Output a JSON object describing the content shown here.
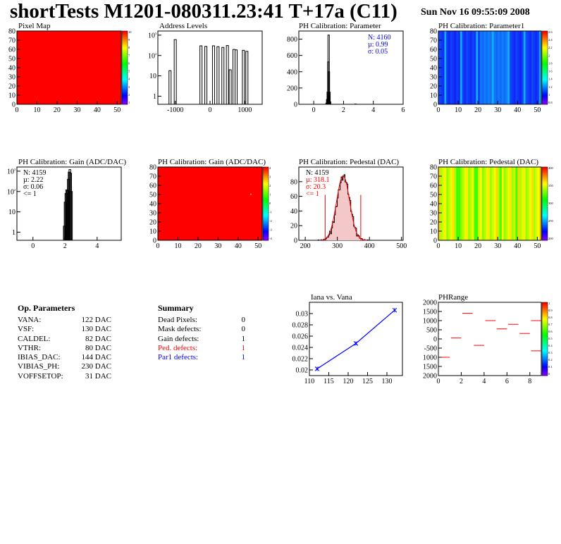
{
  "header": {
    "title": "shortTests M1201-080311.23:41 T+17a (C11)",
    "date": "Sun Nov 16 09:55:09 2008"
  },
  "colors": {
    "red": "#ff0000",
    "blue": "#0000ff",
    "black": "#000000",
    "fill": "#f4c8c8"
  },
  "chart_data": [
    {
      "id": "pixel-map",
      "type": "heatmap",
      "title": "Pixel Map",
      "xlim": [
        0,
        52
      ],
      "ylim": [
        0,
        80
      ],
      "xticks": [
        "0",
        "10",
        "20",
        "30",
        "40",
        "50"
      ],
      "yticks": [
        "0",
        "10",
        "20",
        "30",
        "40",
        "50",
        "60",
        "70",
        "80"
      ],
      "zticks": [
        "10",
        "9",
        "8",
        "7",
        "6",
        "5",
        "4",
        "3",
        "2",
        "1"
      ],
      "fill_value": 10
    },
    {
      "id": "address-levels",
      "type": "bar",
      "title": "Address Levels",
      "log_y": true,
      "xlim": [
        -1500,
        1500
      ],
      "xticks": [
        "-1000",
        "0",
        "1000"
      ],
      "yticks": [
        "1",
        "10",
        "10^2",
        "10^3"
      ],
      "peaks": [
        {
          "x": -1150,
          "y": 18
        },
        {
          "x": -1000,
          "y": 600
        },
        {
          "x": -260,
          "y": 300
        },
        {
          "x": -120,
          "y": 280
        },
        {
          "x": 100,
          "y": 300
        },
        {
          "x": 230,
          "y": 270
        },
        {
          "x": 370,
          "y": 250
        },
        {
          "x": 500,
          "y": 310
        },
        {
          "x": 580,
          "y": 20
        },
        {
          "x": 690,
          "y": 200
        },
        {
          "x": 750,
          "y": 190
        },
        {
          "x": 960,
          "y": 180
        },
        {
          "x": 1060,
          "y": 160
        }
      ]
    },
    {
      "id": "ph-cal-parameter",
      "type": "bar",
      "title": "PH Calibration: Parameter",
      "xlim": [
        -1,
        6
      ],
      "ylim": [
        0,
        900
      ],
      "xticks": [
        "0",
        "2",
        "4",
        "6"
      ],
      "yticks": [
        "0",
        "200",
        "400",
        "600",
        "800"
      ],
      "stats": [
        "N: 4160",
        "µ: 0.99",
        "σ: 0.05"
      ],
      "values": [
        [
          0.86,
          15
        ],
        [
          0.9,
          60
        ],
        [
          0.94,
          150
        ],
        [
          0.98,
          520
        ],
        [
          1.0,
          850
        ],
        [
          1.02,
          400
        ],
        [
          1.06,
          150
        ],
        [
          1.1,
          30
        ],
        [
          2.8,
          3
        ]
      ]
    },
    {
      "id": "ph-cal-parameter1",
      "type": "heatmap",
      "title": "PH Calibration: Parameter1",
      "xlim": [
        0,
        52
      ],
      "ylim": [
        0,
        80
      ],
      "xticks": [
        "0",
        "10",
        "20",
        "30",
        "40",
        "50"
      ],
      "yticks": [
        "0",
        "10",
        "20",
        "30",
        "40",
        "50",
        "60",
        "70",
        "80"
      ],
      "zticks": [
        "2.6",
        "2.4",
        "2.2",
        "2",
        "1.8",
        "1.6",
        "1.4",
        "1.2",
        "1",
        "0.8"
      ],
      "fill_value": 1.0
    },
    {
      "id": "gain-hist",
      "type": "bar",
      "title": "PH Calibration: Gain (ADC/DAC)",
      "log_y": true,
      "xlim": [
        -1,
        5.5
      ],
      "xticks": [
        "0",
        "2",
        "4"
      ],
      "yticks": [
        "1",
        "10",
        "10^2",
        "10^3"
      ],
      "stats": [
        "N: 4159",
        "µ: 2.22",
        "σ: 0.06",
        "<= 1"
      ],
      "values": [
        [
          1.95,
          2
        ],
        [
          2.0,
          30
        ],
        [
          2.05,
          80
        ],
        [
          2.1,
          120
        ],
        [
          2.15,
          110
        ],
        [
          2.2,
          400
        ],
        [
          2.25,
          900
        ],
        [
          2.3,
          1200
        ],
        [
          2.35,
          800
        ],
        [
          2.4,
          100
        ]
      ]
    },
    {
      "id": "gain-map",
      "type": "heatmap",
      "title": "PH Calibration: Gain (ADC/DAC)",
      "xlim": [
        0,
        52
      ],
      "ylim": [
        0,
        80
      ],
      "xticks": [
        "0",
        "10",
        "20",
        "30",
        "40",
        "50"
      ],
      "yticks": [
        "0",
        "10",
        "20",
        "30",
        "40",
        "50",
        "60",
        "70",
        "80"
      ],
      "zticks": [
        "4",
        "3",
        "2",
        "1",
        "0",
        "-1",
        "-2",
        "-3",
        "-4"
      ],
      "fill_value": 4
    },
    {
      "id": "pedestal-hist",
      "type": "bar",
      "title": "PH Calibration: Pedestal (DAC)",
      "xlim": [
        180,
        505
      ],
      "ylim": [
        0,
        100
      ],
      "xticks": [
        "200",
        "300",
        "400",
        "500"
      ],
      "yticks": [
        "0",
        "20",
        "40",
        "60",
        "80"
      ],
      "stats": [
        "N: 4159",
        "µ: 318.1",
        "σ: 20.3",
        "<= 1"
      ],
      "cut_lines": [
        262,
        373
      ],
      "mean": 318,
      "sigma": 20.3,
      "peak": 88
    },
    {
      "id": "pedestal-map",
      "type": "heatmap",
      "title": "PH Calibration: Pedestal (DAC)",
      "xlim": [
        0,
        52
      ],
      "ylim": [
        0,
        80
      ],
      "xticks": [
        "0",
        "10",
        "20",
        "30",
        "40",
        "50"
      ],
      "yticks": [
        "0",
        "10",
        "20",
        "30",
        "40",
        "50",
        "60",
        "70",
        "80"
      ],
      "zticks": [
        "400",
        "350",
        "300",
        "250",
        "200"
      ]
    },
    {
      "id": "iana-vs-vana",
      "type": "line",
      "title": "Iana vs. Vana",
      "xlim": [
        110,
        134
      ],
      "ylim": [
        0.019,
        0.032
      ],
      "xticks": [
        "110",
        "115",
        "120",
        "125",
        "130"
      ],
      "yticks": [
        "0.02",
        "0.022",
        "0.024",
        "0.026",
        "0.028",
        "0.03"
      ],
      "points": [
        [
          112,
          0.0202
        ],
        [
          122,
          0.0247
        ],
        [
          132,
          0.0306
        ]
      ]
    },
    {
      "id": "ph-range",
      "type": "scatter",
      "title": "PHRange",
      "xlim": [
        0,
        9
      ],
      "ylim": [
        -2000,
        2000
      ],
      "xticks": [
        "0",
        "2",
        "4",
        "6",
        "8"
      ],
      "yticks": [
        "2000",
        "1500",
        "1000",
        "500",
        "0",
        "-500",
        "1000",
        "1500",
        "2000"
      ],
      "zticks": [
        "1",
        "0.9",
        "0.8",
        "0.7",
        "0.6",
        "0.5",
        "0.4",
        "0.3",
        "0.2",
        "0.1",
        "0"
      ],
      "segments": [
        [
          0,
          -1000
        ],
        [
          1,
          50
        ],
        [
          2,
          1400
        ],
        [
          3,
          -350
        ],
        [
          4,
          1000
        ],
        [
          5,
          550
        ],
        [
          6,
          800
        ],
        [
          7,
          300
        ],
        [
          8,
          1000
        ],
        [
          8,
          -650
        ]
      ]
    }
  ],
  "op_parameters": {
    "heading": "Op. Parameters",
    "rows": [
      {
        "name": "VANA:",
        "value": "122 DAC"
      },
      {
        "name": "VSF:",
        "value": "130 DAC"
      },
      {
        "name": "CALDEL:",
        "value": "82 DAC"
      },
      {
        "name": "VTHR:",
        "value": "80 DAC"
      },
      {
        "name": "IBIAS_DAC:",
        "value": "144 DAC"
      },
      {
        "name": "VIBIAS_PH:",
        "value": "230 DAC"
      },
      {
        "name": "VOFFSETOP:",
        "value": "31 DAC"
      }
    ]
  },
  "summary": {
    "heading": "Summary",
    "rows": [
      {
        "name": "Dead Pixels:",
        "value": "0",
        "color": "#000000"
      },
      {
        "name": "Mask defects:",
        "value": "0",
        "color": "#000000"
      },
      {
        "name": "Gain defects:",
        "value": "1",
        "color": "#000000"
      },
      {
        "name": "Ped. defects:",
        "value": "1",
        "color": "#ff0000"
      },
      {
        "name": "Par1 defects:",
        "value": "1",
        "color": "#0000ff"
      }
    ]
  }
}
